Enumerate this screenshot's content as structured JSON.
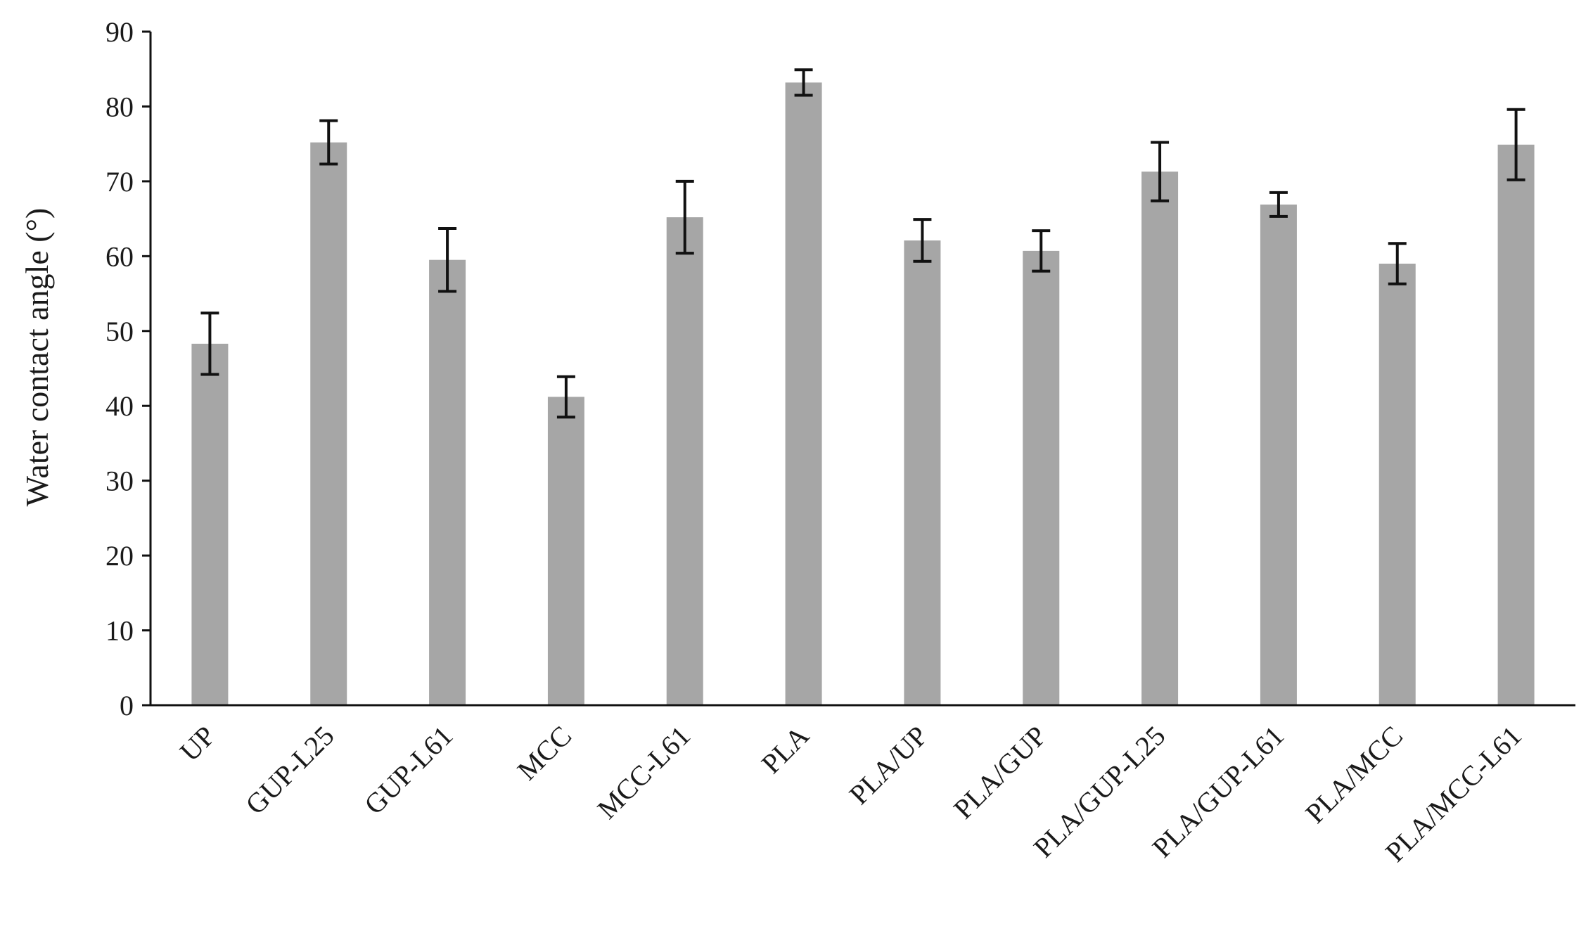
{
  "chart_data": {
    "type": "bar",
    "title": "",
    "xlabel": "",
    "ylabel": "Water contact angle (°)",
    "ylim": [
      0,
      90
    ],
    "yticks": [
      0,
      10,
      20,
      30,
      40,
      50,
      60,
      70,
      80,
      90
    ],
    "grid": false,
    "legend": "none",
    "categories": [
      "UP",
      "GUP-L25",
      "GUP-L61",
      "MCC",
      "MCC-L61",
      "PLA",
      "PLA/UP",
      "PLA/GUP",
      "PLA/GUP-L25",
      "PLA/GUP-L61",
      "PLA/MCC",
      "PLA/MCC-L61"
    ],
    "values": [
      48.3,
      75.2,
      59.5,
      41.2,
      65.2,
      83.2,
      62.1,
      60.7,
      71.3,
      66.9,
      59.0,
      74.9
    ],
    "errors": [
      4.1,
      2.9,
      4.2,
      2.7,
      4.8,
      1.7,
      2.8,
      2.7,
      3.9,
      1.6,
      2.7,
      4.7
    ],
    "colors": {
      "bar": "#a6a6a6",
      "error_bar": "#111111",
      "axis": "#111111"
    }
  }
}
